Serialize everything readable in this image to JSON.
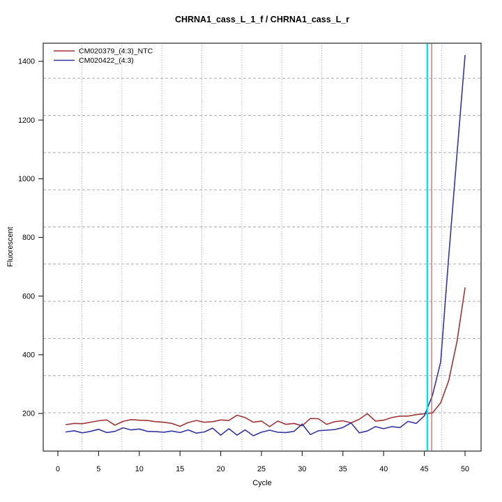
{
  "title": "CHRNA1_cass_L_1_f / CHRNA1_cass_L_r",
  "chart_data": {
    "type": "line",
    "title": "CHRNA1_cass_L_1_f / CHRNA1_cass_L_r",
    "xlabel": "Cycle",
    "ylabel": "Fluorescent",
    "xlim": [
      -1,
      52
    ],
    "ylim": [
      72,
      1462
    ],
    "x_ticks": [
      0,
      5,
      10,
      15,
      20,
      25,
      30,
      35,
      40,
      45,
      50
    ],
    "y_ticks": [
      200,
      400,
      600,
      800,
      1000,
      1200,
      1400
    ],
    "grid": {
      "on": true,
      "vertical_lines": 10,
      "horizontal_lines": 10
    },
    "legend_position": "top-left",
    "cycles": [
      1,
      2,
      3,
      4,
      5,
      6,
      7,
      8,
      9,
      10,
      11,
      12,
      13,
      14,
      15,
      16,
      17,
      18,
      19,
      20,
      21,
      22,
      23,
      24,
      25,
      26,
      27,
      28,
      29,
      30,
      31,
      32,
      33,
      34,
      35,
      36,
      37,
      38,
      39,
      40,
      41,
      42,
      43,
      44,
      45,
      46,
      47,
      48,
      49,
      50
    ],
    "series": [
      {
        "name": "CM020379_(4:3)_NTC",
        "color": "#A03434",
        "values": [
          162,
          166,
          165,
          170,
          175,
          178,
          160,
          173,
          179,
          177,
          176,
          172,
          170,
          166,
          156,
          169,
          176,
          170,
          172,
          178,
          176,
          194,
          186,
          170,
          174,
          155,
          174,
          163,
          166,
          158,
          183,
          182,
          163,
          172,
          175,
          168,
          180,
          199,
          174,
          177,
          186,
          191,
          191,
          196,
          199,
          202,
          236,
          312,
          443,
          628
        ]
      },
      {
        "name": "CM020422_(4:3)",
        "color": "#3434A4",
        "values": [
          137,
          141,
          134,
          139,
          146,
          135,
          139,
          151,
          144,
          147,
          139,
          138,
          136,
          140,
          135,
          144,
          133,
          137,
          150,
          126,
          148,
          126,
          144,
          124,
          136,
          143,
          136,
          135,
          139,
          164,
          128,
          141,
          143,
          145,
          152,
          168,
          134,
          140,
          155,
          148,
          155,
          152,
          173,
          166,
          192,
          262,
          375,
          735,
          1080,
          1420
        ]
      }
    ],
    "threshold_lines": [
      {
        "name": "ct-marker-cyan",
        "cycle": 45.37,
        "color": "#00E5E5"
      },
      {
        "name": "ct-marker-red",
        "cycle": 45.9,
        "color": "#C25959"
      }
    ]
  }
}
